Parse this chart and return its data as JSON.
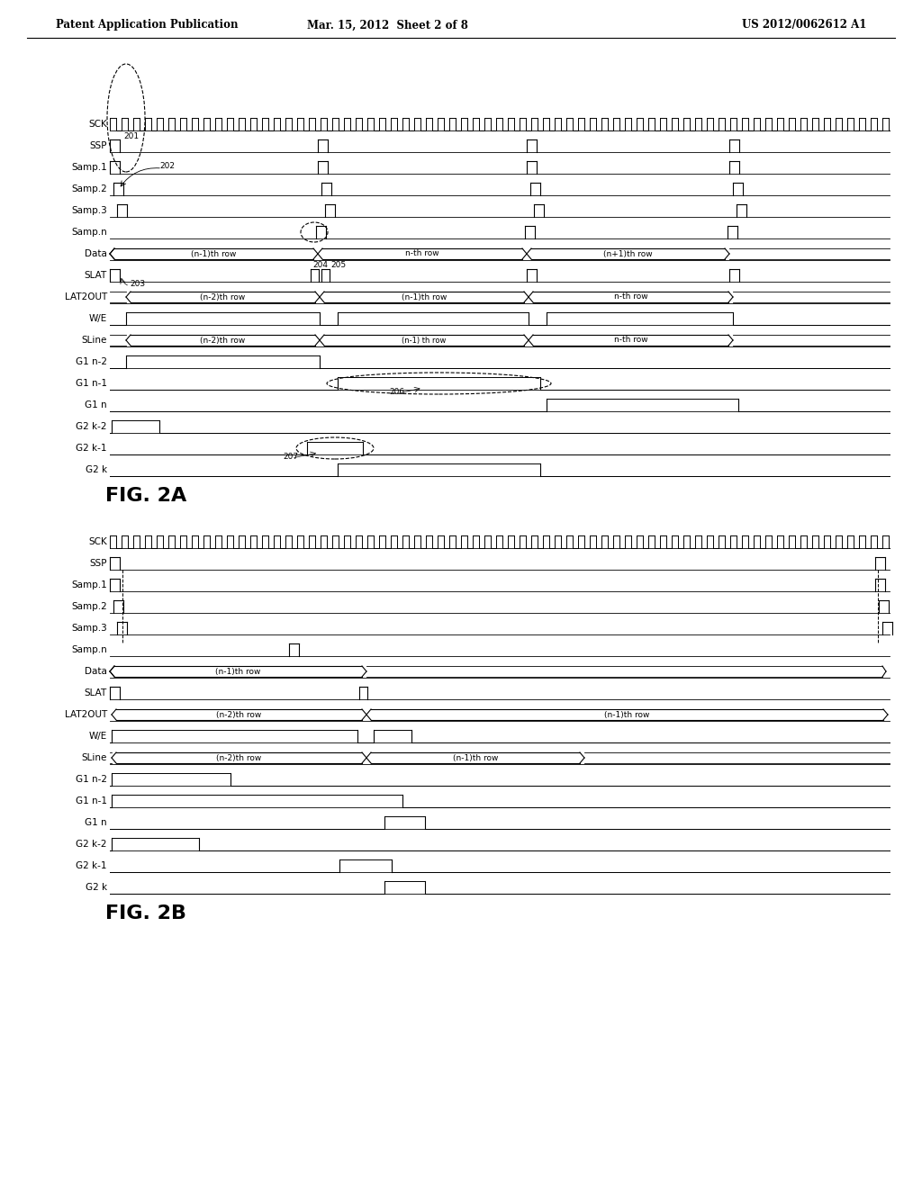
{
  "header_left": "Patent Application Publication",
  "header_mid": "Mar. 15, 2012  Sheet 2 of 8",
  "header_right": "US 2012/0062612 A1",
  "fig2a_label": "FIG. 2A",
  "fig2b_label": "FIG. 2B",
  "background_color": "#ffffff",
  "fig2a_signals": [
    "SCK",
    "SSP",
    "Samp.1",
    "Samp.2",
    "Samp.3",
    "Samp.n",
    "Data",
    "SLAT",
    "LAT2OUT",
    "W/E",
    "SLine",
    "G1 n-2",
    "G1 n-1",
    "G1 n",
    "G2 k-2",
    "G2 k-1",
    "G2 k"
  ],
  "fig2b_signals": [
    "SCK",
    "SSP",
    "Samp.1",
    "Samp.2",
    "Samp.3",
    "Samp.n",
    "Data",
    "SLAT",
    "LAT2OUT",
    "W/E",
    "SLine",
    "G1 n-2",
    "G1 n-1",
    "G1 n",
    "G2 k-2",
    "G2 k-1",
    "G2 k"
  ]
}
